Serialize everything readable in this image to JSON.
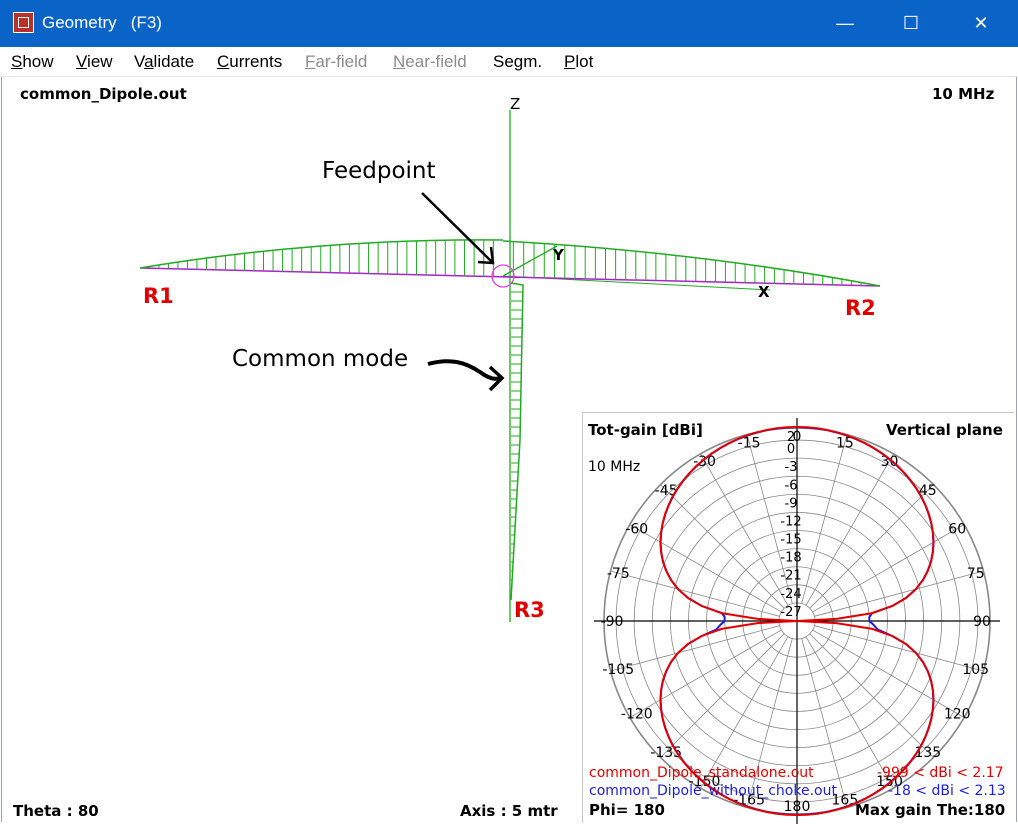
{
  "window": {
    "title": "Geometry   (F3)",
    "minimize": "—",
    "maximize": "☐",
    "close": "✕",
    "icon": "app-cube-icon"
  },
  "menu": [
    {
      "label": "Show",
      "ul": "S",
      "rest": "how",
      "enabled": true
    },
    {
      "label": "View",
      "ul": "V",
      "rest": "iew",
      "enabled": true
    },
    {
      "label": "Validate",
      "ul": "a",
      "pre": "V",
      "rest": "lidate",
      "enabled": true
    },
    {
      "label": "Currents",
      "ul": "C",
      "rest": "urrents",
      "enabled": true
    },
    {
      "label": "Far-field",
      "ul": "F",
      "rest": "ar-field",
      "enabled": false
    },
    {
      "label": "Near-field",
      "ul": "N",
      "rest": "ear-field",
      "enabled": false
    },
    {
      "label": "Segm.",
      "ul": "g",
      "pre": "Se",
      "rest": "m.",
      "enabled": true
    },
    {
      "label": "Plot",
      "ul": "P",
      "rest": "lot",
      "enabled": true
    }
  ],
  "canvas": {
    "filename": "common_Dipole.out",
    "frequency": "10 MHz",
    "theta": "Theta : 80",
    "axis": "Axis : 5 mtr",
    "axis_labels": {
      "z": "Z",
      "y": "Y",
      "x": "X"
    },
    "points": {
      "r1": "R1",
      "r2": "R2",
      "r3": "R3"
    },
    "annotations": {
      "feedpoint": "Feedpoint",
      "common_mode": "Common mode"
    },
    "colors": {
      "current": "#22aa22",
      "wire": "#aa22cc",
      "label_red": "#e00000"
    }
  },
  "inset": {
    "title": "Tot-gain [dBi]",
    "plane": "Vertical plane",
    "frequency": "10 MHz",
    "phi": "Phi= 180",
    "max_gain": "Max gain The:180",
    "angle_labels": [
      "0",
      "15",
      "30",
      "45",
      "60",
      "75",
      "90",
      "105",
      "120",
      "135",
      "150",
      "165",
      "180",
      "-15",
      "-30",
      "-45",
      "-60",
      "-75",
      "-90",
      "-105",
      "-120",
      "-135",
      "-150",
      "-165",
      "-180"
    ],
    "ring_labels": [
      "2",
      "0",
      "-3",
      "-6",
      "-9",
      "-12",
      "-15",
      "-18",
      "-21",
      "-24",
      "-27"
    ],
    "legend": [
      {
        "name": "common_Dipole_standalone.out",
        "range": "-999 < dBi < 2.17",
        "color": "#e00000"
      },
      {
        "name": "common_Dipole_without_choke.out",
        "range": "-18 < dBi < 2.13",
        "color": "#1e1edc"
      }
    ]
  }
}
